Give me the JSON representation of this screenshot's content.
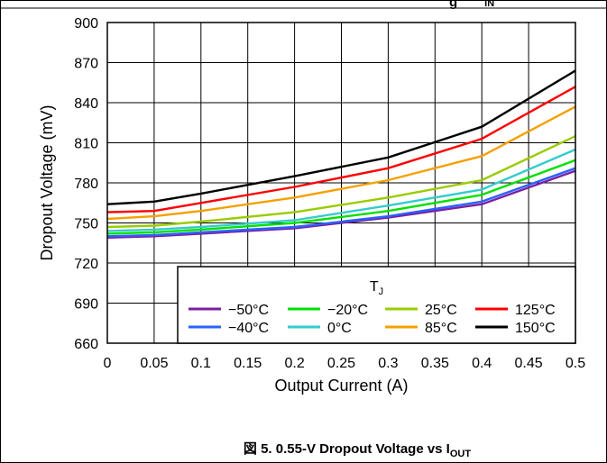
{
  "header": {
    "partial_text": "g",
    "partial_subscript": "IN"
  },
  "caption": {
    "prefix": "図 5. 0.55-V Dropout Voltage vs I",
    "subscript": "OUT"
  },
  "chart_data": {
    "type": "line",
    "xlabel": "Output Current (A)",
    "ylabel": "Dropout Voltage (mV)",
    "xlim": [
      0,
      0.5
    ],
    "ylim": [
      660,
      900
    ],
    "x_ticks": [
      "0",
      "0.05",
      "0.1",
      "0.15",
      "0.2",
      "0.25",
      "0.3",
      "0.35",
      "0.4",
      "0.45",
      "0.5"
    ],
    "y_ticks": [
      "900",
      "870",
      "840",
      "810",
      "780",
      "750",
      "720",
      "690",
      "660"
    ],
    "grid": true,
    "legend": {
      "title_main": "T",
      "title_sub": "J",
      "placement": "bottom-right"
    },
    "x": [
      0,
      0.05,
      0.1,
      0.2,
      0.3,
      0.4,
      0.5
    ],
    "series": [
      {
        "name": "−50°C",
        "color": "#7b1fa2",
        "values": [
          739,
          740,
          742,
          746,
          754,
          764,
          789
        ]
      },
      {
        "name": "−40°C",
        "color": "#2962ff",
        "values": [
          740,
          741,
          743,
          747,
          755,
          766,
          791
        ]
      },
      {
        "name": "−20°C",
        "color": "#00e000",
        "values": [
          742,
          743,
          745,
          750,
          759,
          771,
          797
        ]
      },
      {
        "name": "0°C",
        "color": "#33cccc",
        "values": [
          744,
          745,
          747,
          752,
          763,
          775,
          805
        ]
      },
      {
        "name": "25°C",
        "color": "#99cc00",
        "values": [
          747,
          748,
          751,
          758,
          769,
          782,
          815
        ]
      },
      {
        "name": "85°C",
        "color": "#f5a000",
        "values": [
          753,
          755,
          759,
          769,
          782,
          800,
          837
        ]
      },
      {
        "name": "125°C",
        "color": "#ff0000",
        "values": [
          758,
          759,
          765,
          777,
          791,
          813,
          852
        ]
      },
      {
        "name": "150°C",
        "color": "#000000",
        "values": [
          764,
          766,
          772,
          785,
          799,
          822,
          864
        ]
      }
    ]
  }
}
